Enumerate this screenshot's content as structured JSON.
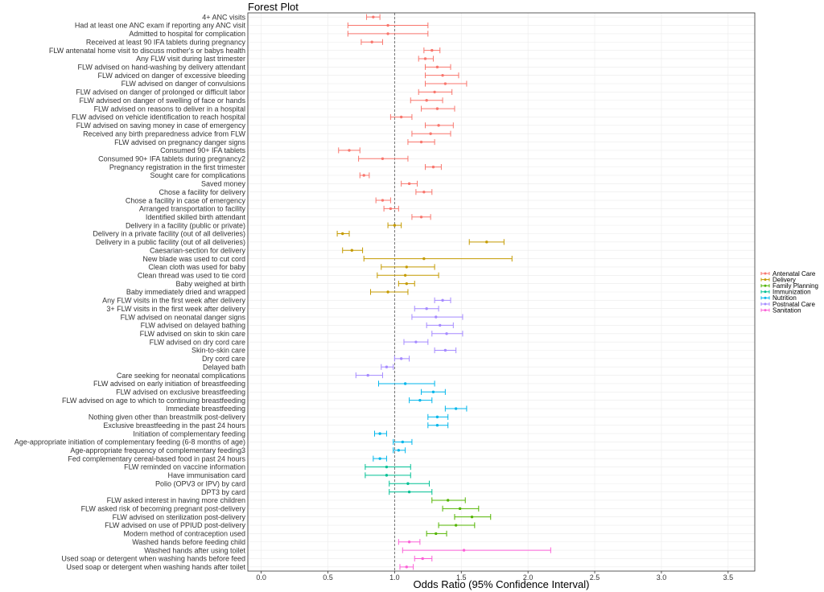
{
  "chart_data": {
    "type": "forest",
    "title": "Forest Plot",
    "xlabel": "Odds Ratio (95% Confidence Interval)",
    "ylabel": "",
    "xlim": [
      -0.1,
      3.7
    ],
    "x_ticks": [
      "0.0",
      "0.5",
      "1.0",
      "1.5",
      "2.0",
      "2.5",
      "3.0",
      "3.5"
    ],
    "reference_line": 1.0,
    "grid": true,
    "legend_position": "right",
    "groups": [
      {
        "name": "Antenatal Care",
        "color": "#F8766D"
      },
      {
        "name": "Delivery",
        "color": "#C49A00"
      },
      {
        "name": "Family Planning",
        "color": "#53B400"
      },
      {
        "name": "Immunization",
        "color": "#00C094"
      },
      {
        "name": "Nutrition",
        "color": "#00B6EB"
      },
      {
        "name": "Postnatal Care",
        "color": "#A58AFF"
      },
      {
        "name": "Sanitation",
        "color": "#FB61D7"
      }
    ],
    "rows": [
      {
        "label": "4+ ANC visits",
        "group": "Antenatal Care",
        "or": 0.84,
        "lo": 0.79,
        "hi": 0.89
      },
      {
        "label": "Had at least one ANC exam if reporting any ANC visit",
        "group": "Antenatal Care",
        "or": 0.95,
        "lo": 0.65,
        "hi": 1.25
      },
      {
        "label": "Admitted to hospital for complication",
        "group": "Antenatal Care",
        "or": 0.95,
        "lo": 0.65,
        "hi": 1.25
      },
      {
        "label": "Received at least 90 IFA tablets during pregnancy",
        "group": "Antenatal Care",
        "or": 0.83,
        "lo": 0.75,
        "hi": 0.91
      },
      {
        "label": "FLW antenatal home visit to discuss mother's or babys health",
        "group": "Antenatal Care",
        "or": 1.28,
        "lo": 1.22,
        "hi": 1.34
      },
      {
        "label": "Any FLW visit during last trimester",
        "group": "Antenatal Care",
        "or": 1.23,
        "lo": 1.18,
        "hi": 1.29
      },
      {
        "label": "FLW advised on hand-washing by delivery attendant",
        "group": "Antenatal Care",
        "or": 1.32,
        "lo": 1.23,
        "hi": 1.42
      },
      {
        "label": "FLW adviced on danger of excessive bleeding",
        "group": "Antenatal Care",
        "or": 1.36,
        "lo": 1.23,
        "hi": 1.48
      },
      {
        "label": "FLW advised on danger of convulsions",
        "group": "Antenatal Care",
        "or": 1.38,
        "lo": 1.23,
        "hi": 1.54
      },
      {
        "label": "FLW advised on danger of prolonged or difficult labor",
        "group": "Antenatal Care",
        "or": 1.3,
        "lo": 1.18,
        "hi": 1.43
      },
      {
        "label": "FLW advised on danger of swelling of face or hands",
        "group": "Antenatal Care",
        "or": 1.24,
        "lo": 1.12,
        "hi": 1.36
      },
      {
        "label": "FLW advised on reasons to deliver in a hospital",
        "group": "Antenatal Care",
        "or": 1.32,
        "lo": 1.2,
        "hi": 1.45
      },
      {
        "label": "FLW advised on vehicle identification to reach hospital",
        "group": "Antenatal Care",
        "or": 1.05,
        "lo": 0.97,
        "hi": 1.13
      },
      {
        "label": "FLW advised on saving money in case of emergency",
        "group": "Antenatal Care",
        "or": 1.33,
        "lo": 1.23,
        "hi": 1.44
      },
      {
        "label": "Received any birth preparedness advice from FLW",
        "group": "Antenatal Care",
        "or": 1.27,
        "lo": 1.13,
        "hi": 1.42
      },
      {
        "label": "FLW advised on pregnancy danger signs",
        "group": "Antenatal Care",
        "or": 1.2,
        "lo": 1.1,
        "hi": 1.3
      },
      {
        "label": "Consumed 90+ IFA tablets",
        "group": "Antenatal Care",
        "or": 0.66,
        "lo": 0.58,
        "hi": 0.74
      },
      {
        "label": "Consumed 90+ IFA tablets during pregnancy2",
        "group": "Antenatal Care",
        "or": 0.91,
        "lo": 0.73,
        "hi": 1.1
      },
      {
        "label": "Pregnancy registration in the first trimester",
        "group": "Antenatal Care",
        "or": 1.29,
        "lo": 1.23,
        "hi": 1.35
      },
      {
        "label": "Sought care for complications",
        "group": "Antenatal Care",
        "or": 0.77,
        "lo": 0.74,
        "hi": 0.81
      },
      {
        "label": "Saved money",
        "group": "Antenatal Care",
        "or": 1.11,
        "lo": 1.05,
        "hi": 1.17
      },
      {
        "label": "Chose a facility for delivery",
        "group": "Antenatal Care",
        "or": 1.22,
        "lo": 1.16,
        "hi": 1.28
      },
      {
        "label": "Chose a facility in case of emergency",
        "group": "Antenatal Care",
        "or": 0.91,
        "lo": 0.86,
        "hi": 0.97
      },
      {
        "label": "Arranged transportation to facility",
        "group": "Antenatal Care",
        "or": 0.97,
        "lo": 0.92,
        "hi": 1.03
      },
      {
        "label": "Identified skilled birth attendant",
        "group": "Antenatal Care",
        "or": 1.2,
        "lo": 1.13,
        "hi": 1.27
      },
      {
        "label": "Delivery in a facility (public or private)",
        "group": "Delivery",
        "or": 1.0,
        "lo": 0.95,
        "hi": 1.05
      },
      {
        "label": "Delivery in a private facility (out of all deliveries)",
        "group": "Delivery",
        "or": 0.61,
        "lo": 0.57,
        "hi": 0.66
      },
      {
        "label": "Delivery in a public facility (out of all deliveries)",
        "group": "Delivery",
        "or": 1.69,
        "lo": 1.56,
        "hi": 1.82
      },
      {
        "label": "Caesarian-section for delivery",
        "group": "Delivery",
        "or": 0.68,
        "lo": 0.61,
        "hi": 0.76
      },
      {
        "label": "New blade was used to cut cord",
        "group": "Delivery",
        "or": 1.22,
        "lo": 0.77,
        "hi": 1.88
      },
      {
        "label": "Clean cloth was used for baby",
        "group": "Delivery",
        "or": 1.09,
        "lo": 0.9,
        "hi": 1.3
      },
      {
        "label": "Clean thread was used to tie cord",
        "group": "Delivery",
        "or": 1.08,
        "lo": 0.87,
        "hi": 1.33
      },
      {
        "label": "Baby weighed at birth",
        "group": "Delivery",
        "or": 1.09,
        "lo": 1.03,
        "hi": 1.15
      },
      {
        "label": "Baby immediately dried and wrapped",
        "group": "Delivery",
        "or": 0.95,
        "lo": 0.82,
        "hi": 1.1
      },
      {
        "label": "Any FLW visits in the first week after delivery",
        "group": "Postnatal Care",
        "or": 1.36,
        "lo": 1.3,
        "hi": 1.42
      },
      {
        "label": "3+ FLW visits in the first week after delivery",
        "group": "Postnatal Care",
        "or": 1.24,
        "lo": 1.15,
        "hi": 1.33
      },
      {
        "label": "FLW advised on neonatal danger signs",
        "group": "Postnatal Care",
        "or": 1.31,
        "lo": 1.13,
        "hi": 1.51
      },
      {
        "label": "FLW advised on delayed bathing",
        "group": "Postnatal Care",
        "or": 1.34,
        "lo": 1.24,
        "hi": 1.44
      },
      {
        "label": "FLW advised on skin to skin care",
        "group": "Postnatal Care",
        "or": 1.39,
        "lo": 1.28,
        "hi": 1.51
      },
      {
        "label": "FLW advised on dry cord care",
        "group": "Postnatal Care",
        "or": 1.16,
        "lo": 1.07,
        "hi": 1.25
      },
      {
        "label": "Skin-to-skin care",
        "group": "Postnatal Care",
        "or": 1.38,
        "lo": 1.3,
        "hi": 1.46
      },
      {
        "label": "Dry cord care",
        "group": "Postnatal Care",
        "or": 1.05,
        "lo": 1.0,
        "hi": 1.11
      },
      {
        "label": "Delayed bath",
        "group": "Postnatal Care",
        "or": 0.94,
        "lo": 0.9,
        "hi": 0.99
      },
      {
        "label": "Care seeking for neonatal complications",
        "group": "Postnatal Care",
        "or": 0.8,
        "lo": 0.71,
        "hi": 0.91
      },
      {
        "label": "FLW advised on early initiation of breastfeeding",
        "group": "Nutrition",
        "or": 1.08,
        "lo": 0.88,
        "hi": 1.3
      },
      {
        "label": "FLW advised on exclusive breastfeeding",
        "group": "Nutrition",
        "or": 1.29,
        "lo": 1.2,
        "hi": 1.38
      },
      {
        "label": "FLW advised on age to which to continuing breastfeeding",
        "group": "Nutrition",
        "or": 1.19,
        "lo": 1.11,
        "hi": 1.28
      },
      {
        "label": "Immediate breastfeeding",
        "group": "Nutrition",
        "or": 1.46,
        "lo": 1.38,
        "hi": 1.54
      },
      {
        "label": "Nothing given other than breastmilk post-delivery",
        "group": "Nutrition",
        "or": 1.32,
        "lo": 1.25,
        "hi": 1.4
      },
      {
        "label": "Exclusive breastfeeding in the past 24 hours",
        "group": "Nutrition",
        "or": 1.32,
        "lo": 1.25,
        "hi": 1.4
      },
      {
        "label": "Initiation of complementary feeding",
        "group": "Nutrition",
        "or": 0.89,
        "lo": 0.85,
        "hi": 0.94
      },
      {
        "label": "Age-appropriate initiation of complementary feeding (6-8 months of age)",
        "group": "Nutrition",
        "or": 1.06,
        "lo": 0.99,
        "hi": 1.13
      },
      {
        "label": "Age-appropriate frequency of complementary feeding3",
        "group": "Nutrition",
        "or": 1.03,
        "lo": 0.99,
        "hi": 1.08
      },
      {
        "label": "Fed complementary cereal-based food in past 24 hours",
        "group": "Nutrition",
        "or": 0.89,
        "lo": 0.84,
        "hi": 0.94
      },
      {
        "label": "FLW reminded on vaccine information",
        "group": "Immunization",
        "or": 0.94,
        "lo": 0.78,
        "hi": 1.12
      },
      {
        "label": "Have immunisation card",
        "group": "Immunization",
        "or": 0.94,
        "lo": 0.78,
        "hi": 1.12
      },
      {
        "label": "Polio (OPV3 or IPV) by card",
        "group": "Immunization",
        "or": 1.1,
        "lo": 0.96,
        "hi": 1.26
      },
      {
        "label": "DPT3 by card",
        "group": "Immunization",
        "or": 1.11,
        "lo": 0.96,
        "hi": 1.28
      },
      {
        "label": "FLW asked interest in having more children",
        "group": "Family Planning",
        "or": 1.4,
        "lo": 1.28,
        "hi": 1.53
      },
      {
        "label": "FLW asked risk of becoming pregnant post-delivery",
        "group": "Family Planning",
        "or": 1.49,
        "lo": 1.36,
        "hi": 1.63
      },
      {
        "label": "FLW advised on sterilization post-delivery",
        "group": "Family Planning",
        "or": 1.58,
        "lo": 1.45,
        "hi": 1.72
      },
      {
        "label": "FLW advised on use of PPIUD post-delivery",
        "group": "Family Planning",
        "or": 1.46,
        "lo": 1.33,
        "hi": 1.6
      },
      {
        "label": "Modern method of contraception used",
        "group": "Family Planning",
        "or": 1.31,
        "lo": 1.24,
        "hi": 1.39
      },
      {
        "label": "Washed hands before feeding child",
        "group": "Sanitation",
        "or": 1.11,
        "lo": 1.03,
        "hi": 1.19
      },
      {
        "label": "Washed hands after using toilet",
        "group": "Sanitation",
        "or": 1.52,
        "lo": 1.06,
        "hi": 2.17
      },
      {
        "label": "Used soap or detergent when washing hands before feed",
        "group": "Sanitation",
        "or": 1.21,
        "lo": 1.15,
        "hi": 1.28
      },
      {
        "label": "Used soap or detergent when washing hands after toilet",
        "group": "Sanitation",
        "or": 1.09,
        "lo": 1.04,
        "hi": 1.14
      }
    ]
  }
}
